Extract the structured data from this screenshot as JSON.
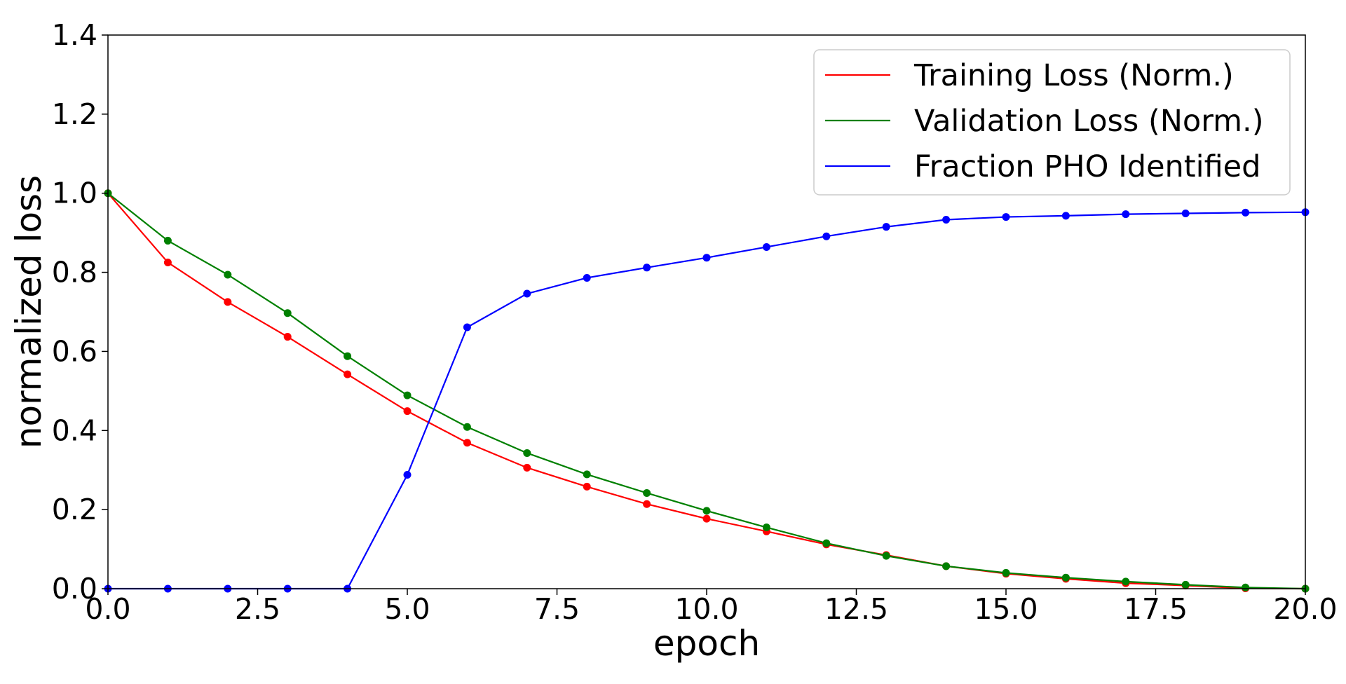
{
  "chart_data": {
    "type": "line",
    "title": "",
    "xlabel": "epoch",
    "ylabel": "normalized loss",
    "xlim": [
      0,
      20
    ],
    "ylim": [
      0,
      1.4
    ],
    "xticks": [
      "0.0",
      "2.5",
      "5.0",
      "7.5",
      "10.0",
      "12.5",
      "15.0",
      "17.5",
      "20.0"
    ],
    "yticks": [
      "0.0",
      "0.2",
      "0.4",
      "0.6",
      "0.8",
      "1.0",
      "1.2",
      "1.4"
    ],
    "grid": false,
    "legend_position": "top-right",
    "x": [
      0,
      1,
      2,
      3,
      4,
      5,
      6,
      7,
      8,
      9,
      10,
      11,
      12,
      13,
      14,
      15,
      16,
      17,
      18,
      19,
      20
    ],
    "series": [
      {
        "name": "Training Loss (Norm.)",
        "color": "#ff0000",
        "values": [
          1.0,
          0.825,
          0.725,
          0.637,
          0.542,
          0.449,
          0.369,
          0.306,
          0.258,
          0.214,
          0.177,
          0.145,
          0.112,
          0.085,
          0.057,
          0.038,
          0.025,
          0.014,
          0.008,
          0.001,
          0.0
        ]
      },
      {
        "name": "Validation Loss (Norm.)",
        "color": "#008000",
        "values": [
          1.0,
          0.88,
          0.794,
          0.697,
          0.588,
          0.489,
          0.409,
          0.343,
          0.289,
          0.242,
          0.197,
          0.155,
          0.115,
          0.083,
          0.057,
          0.04,
          0.028,
          0.018,
          0.01,
          0.003,
          0.0
        ]
      },
      {
        "name": "Fraction PHO Identified",
        "color": "#0000ff",
        "values": [
          0.0,
          0.0,
          0.0,
          0.0,
          0.0,
          0.288,
          0.661,
          0.746,
          0.786,
          0.812,
          0.837,
          0.864,
          0.891,
          0.915,
          0.933,
          0.94,
          0.943,
          0.947,
          0.949,
          0.951,
          0.952
        ]
      }
    ]
  }
}
